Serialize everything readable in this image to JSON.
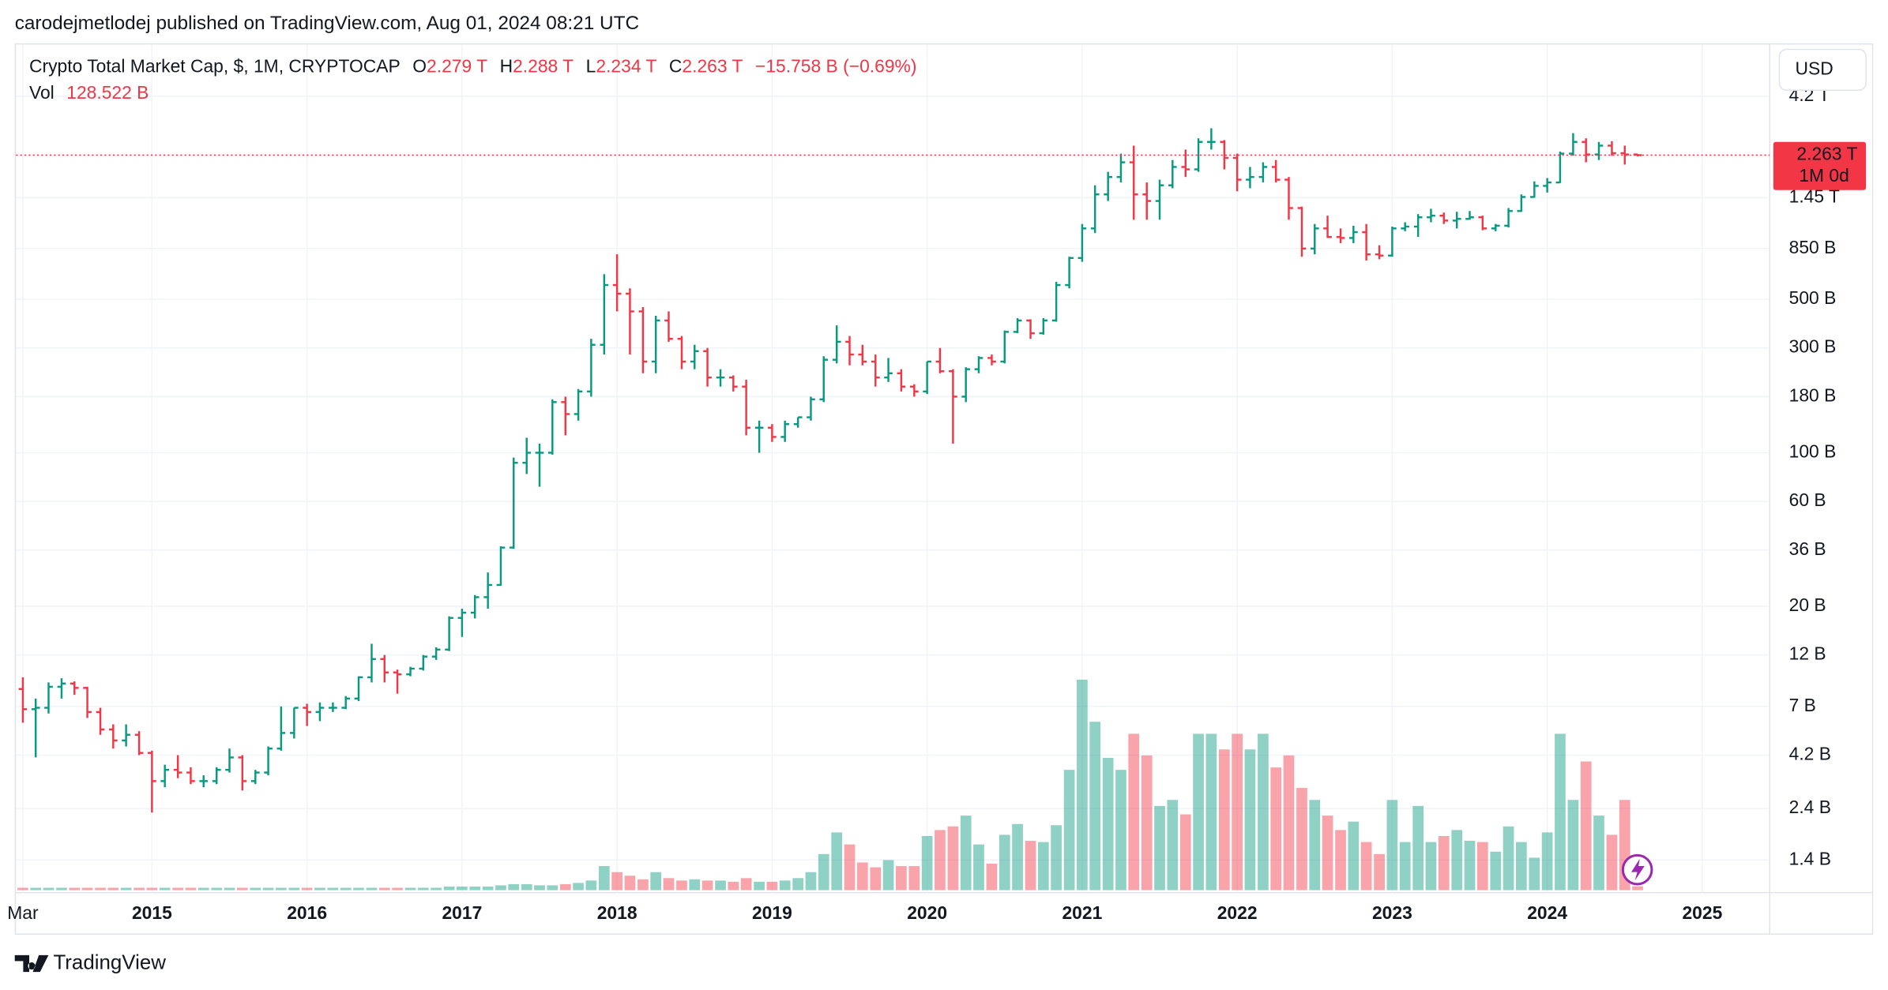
{
  "header": {
    "publisher": "carodejmetlodej published on TradingView.com, Aug 01, 2024 08:21 UTC"
  },
  "footer": {
    "logo_text": "TradingView"
  },
  "currency_button": "USD",
  "chart_data": {
    "type": "ohlc",
    "title": "Crypto Total Market Cap, $, 1M, CRYPTOCAP",
    "legend": {
      "open_key": "O",
      "open": "2.279 T",
      "high_key": "H",
      "high": "2.288 T",
      "low_key": "L",
      "low": "2.234 T",
      "close_key": "C",
      "close": "2.263 T",
      "change": "−15.758 B (−0.69%)",
      "volume_key": "Vol",
      "volume": "128.522 B"
    },
    "last_price_label": "2.263 T",
    "countdown": "1M 0d",
    "up_color": "#089981",
    "down_color": "#f23645",
    "log_scale": true,
    "grid": true,
    "xlim": [
      2014.115,
      2025.435
    ],
    "ylim": [
      1.02,
      6950
    ],
    "vol_ylim": [
      0,
      8000
    ],
    "xticks": [
      {
        "value": 2014.167,
        "label": "Mar"
      },
      2015,
      2016,
      2017,
      2018,
      2019,
      2020,
      2021,
      2022,
      2023,
      2024,
      2025
    ],
    "yticks": [
      {
        "value": 1.4,
        "label": "1.4 B"
      },
      {
        "value": 2.4,
        "label": "2.4 B"
      },
      {
        "value": 4.2,
        "label": "4.2 B"
      },
      {
        "value": 7,
        "label": "7 B"
      },
      {
        "value": 12,
        "label": "12 B"
      },
      {
        "value": 20,
        "label": "20 B"
      },
      {
        "value": 36,
        "label": "36 B"
      },
      {
        "value": 60,
        "label": "60 B"
      },
      {
        "value": 100,
        "label": "100 B"
      },
      {
        "value": 180,
        "label": "180 B"
      },
      {
        "value": 300,
        "label": "300 B"
      },
      {
        "value": 500,
        "label": "500 B"
      },
      {
        "value": 850,
        "label": "850 B"
      },
      {
        "value": 1450,
        "label": "1.45 T"
      },
      {
        "value": 4200,
        "label": "4.2 T"
      }
    ],
    "x": [
      2014.167,
      2014.25,
      2014.333,
      2014.417,
      2014.5,
      2014.583,
      2014.667,
      2014.75,
      2014.833,
      2014.917,
      2015,
      2015.083,
      2015.167,
      2015.25,
      2015.333,
      2015.417,
      2015.5,
      2015.583,
      2015.667,
      2015.75,
      2015.833,
      2015.917,
      2016,
      2016.083,
      2016.167,
      2016.25,
      2016.333,
      2016.417,
      2016.5,
      2016.583,
      2016.667,
      2016.75,
      2016.833,
      2016.917,
      2017,
      2017.083,
      2017.167,
      2017.25,
      2017.333,
      2017.417,
      2017.5,
      2017.583,
      2017.667,
      2017.75,
      2017.833,
      2017.917,
      2018,
      2018.083,
      2018.167,
      2018.25,
      2018.333,
      2018.417,
      2018.5,
      2018.583,
      2018.667,
      2018.75,
      2018.833,
      2018.917,
      2019,
      2019.083,
      2019.167,
      2019.25,
      2019.333,
      2019.417,
      2019.5,
      2019.583,
      2019.667,
      2019.75,
      2019.833,
      2019.917,
      2020,
      2020.083,
      2020.167,
      2020.25,
      2020.333,
      2020.417,
      2020.5,
      2020.583,
      2020.667,
      2020.75,
      2020.833,
      2020.917,
      2021,
      2021.083,
      2021.167,
      2021.25,
      2021.333,
      2021.417,
      2021.5,
      2021.583,
      2021.667,
      2021.75,
      2021.833,
      2021.917,
      2022,
      2022.083,
      2022.167,
      2022.25,
      2022.333,
      2022.417,
      2022.5,
      2022.583,
      2022.667,
      2022.75,
      2022.833,
      2022.917,
      2023,
      2023.083,
      2023.167,
      2023.25,
      2023.333,
      2023.417,
      2023.5,
      2023.583,
      2023.667,
      2023.75,
      2023.833,
      2023.917,
      2024,
      2024.083,
      2024.167,
      2024.25,
      2024.333,
      2024.417,
      2024.5,
      2024.583
    ],
    "open": [
      8.4,
      6.8,
      6.9,
      8.6,
      8.9,
      8.5,
      6.6,
      5.5,
      4.9,
      5.2,
      4.3,
      3.2,
      3.6,
      3.5,
      3.2,
      3.2,
      3.6,
      4.1,
      3.2,
      3.5,
      4.5,
      5.3,
      6.9,
      6.6,
      6.9,
      6.9,
      7.6,
      9.5,
      11.5,
      10.0,
      9.8,
      10.4,
      11.8,
      12.7,
      17.7,
      18.7,
      22.0,
      25.0,
      37.0,
      90,
      100,
      100,
      170,
      150,
      190,
      310,
      580,
      530,
      440,
      260,
      400,
      330,
      260,
      290,
      220,
      220,
      200,
      130,
      130,
      118,
      135,
      145,
      175,
      265,
      320,
      280,
      260,
      220,
      230,
      200,
      190,
      260,
      235,
      180,
      240,
      270,
      260,
      355,
      400,
      350,
      400,
      580,
      770,
      1050,
      1500,
      1800,
      2100,
      1500,
      1400,
      1650,
      2000,
      1950,
      2600,
      2600,
      2200,
      1750,
      1800,
      2000,
      1750,
      1300,
      850,
      1050,
      960,
      950,
      1010,
      800,
      790,
      1050,
      1070,
      1180,
      1200,
      1140,
      1160,
      1180,
      1050,
      1080,
      1260,
      1460,
      1640,
      1700,
      2300,
      2600,
      2280,
      2500,
      2310,
      2279
    ],
    "high": [
      9.5,
      7.6,
      9.0,
      9.4,
      9.1,
      8.6,
      6.9,
      5.8,
      5.8,
      5.4,
      4.4,
      3.8,
      4.2,
      3.7,
      3.4,
      3.7,
      4.5,
      4.2,
      3.6,
      4.6,
      7.0,
      6.9,
      7.2,
      7.3,
      7.3,
      7.8,
      9.6,
      13.5,
      12.0,
      10.3,
      10.6,
      12.0,
      13.0,
      18.0,
      19.5,
      22.5,
      28.5,
      37.5,
      95,
      117,
      110,
      175,
      180,
      195,
      330,
      650,
      800,
      560,
      460,
      420,
      440,
      340,
      310,
      300,
      240,
      225,
      215,
      140,
      135,
      140,
      145,
      180,
      275,
      380,
      340,
      310,
      280,
      270,
      240,
      205,
      260,
      300,
      240,
      245,
      275,
      280,
      360,
      410,
      405,
      410,
      600,
      780,
      1100,
      1650,
      1900,
      2300,
      2500,
      1700,
      1750,
      2150,
      2400,
      2700,
      3000,
      2650,
      2300,
      2000,
      2100,
      2150,
      1800,
      1320,
      1100,
      1200,
      1050,
      1080,
      1100,
      880,
      1070,
      1120,
      1220,
      1290,
      1240,
      1250,
      1260,
      1200,
      1100,
      1300,
      1500,
      1720,
      1780,
      2350,
      2850,
      2700,
      2600,
      2620,
      2500,
      2288
    ],
    "low": [
      5.9,
      4.1,
      6.5,
      7.6,
      7.9,
      6.2,
      5.2,
      4.5,
      4.6,
      4.2,
      2.3,
      3.0,
      3.3,
      3.1,
      3.0,
      3.1,
      3.5,
      2.9,
      3.1,
      3.4,
      4.4,
      5.0,
      5.7,
      6.0,
      6.6,
      6.8,
      7.4,
      9.0,
      9.0,
      8.0,
      9.6,
      10.2,
      11.4,
      12.5,
      14.5,
      17.6,
      19.5,
      24.8,
      36.5,
      80,
      70,
      98,
      120,
      140,
      180,
      280,
      440,
      280,
      230,
      230,
      320,
      240,
      240,
      200,
      200,
      190,
      120,
      100,
      112,
      112,
      130,
      140,
      170,
      255,
      250,
      250,
      200,
      210,
      190,
      180,
      185,
      230,
      110,
      170,
      230,
      250,
      255,
      350,
      330,
      345,
      395,
      560,
      740,
      1000,
      1400,
      1700,
      1150,
      1150,
      1150,
      1600,
      1800,
      1900,
      2400,
      1950,
      1550,
      1600,
      1700,
      1700,
      1150,
      780,
      800,
      950,
      900,
      900,
      750,
      760,
      780,
      1020,
      960,
      1120,
      1100,
      1050,
      1150,
      1030,
      1020,
      1060,
      1250,
      1450,
      1530,
      1690,
      2250,
      2100,
      2150,
      2250,
      2050,
      2234
    ],
    "close": [
      6.8,
      6.9,
      8.6,
      8.9,
      8.5,
      6.6,
      5.5,
      4.9,
      5.2,
      4.3,
      3.2,
      3.6,
      3.5,
      3.2,
      3.2,
      3.6,
      4.1,
      3.2,
      3.5,
      4.5,
      5.3,
      6.9,
      6.6,
      6.9,
      6.9,
      7.6,
      9.5,
      11.5,
      10.0,
      9.8,
      10.4,
      11.8,
      12.7,
      17.7,
      18.7,
      22.0,
      25.0,
      37.0,
      90,
      100,
      100,
      170,
      150,
      190,
      310,
      580,
      530,
      440,
      260,
      400,
      330,
      260,
      290,
      220,
      220,
      200,
      130,
      130,
      118,
      135,
      145,
      175,
      265,
      320,
      280,
      260,
      220,
      230,
      200,
      190,
      260,
      235,
      180,
      240,
      270,
      260,
      355,
      400,
      350,
      400,
      580,
      770,
      1050,
      1500,
      1800,
      2100,
      1500,
      1400,
      1650,
      2000,
      1950,
      2600,
      2600,
      2200,
      1750,
      1800,
      2000,
      1750,
      1300,
      850,
      1050,
      960,
      950,
      1010,
      800,
      790,
      1050,
      1070,
      1180,
      1200,
      1140,
      1160,
      1180,
      1050,
      1080,
      1260,
      1460,
      1640,
      1700,
      2300,
      2600,
      2280,
      2500,
      2310,
      2279,
      2263
    ],
    "volume": [
      80,
      80,
      80,
      80,
      80,
      80,
      80,
      80,
      80,
      80,
      80,
      80,
      80,
      80,
      80,
      80,
      80,
      80,
      80,
      80,
      80,
      80,
      80,
      80,
      80,
      80,
      80,
      80,
      80,
      80,
      80,
      80,
      80,
      120,
      120,
      120,
      120,
      160,
      200,
      200,
      160,
      160,
      200,
      240,
      320,
      800,
      600,
      480,
      360,
      600,
      400,
      320,
      360,
      320,
      320,
      280,
      400,
      280,
      280,
      320,
      400,
      600,
      1200,
      1920,
      1520,
      920,
      760,
      1000,
      800,
      800,
      1800,
      2000,
      2120,
      2480,
      1520,
      880,
      1840,
      2200,
      1640,
      1600,
      2160,
      4000,
      7000,
      5600,
      4400,
      4000,
      5200,
      4480,
      2800,
      3000,
      2520,
      5200,
      5200,
      4680,
      5200,
      4680,
      5200,
      4080,
      4480,
      3400,
      3000,
      2480,
      2000,
      2280,
      1600,
      1200,
      3000,
      1600,
      2800,
      1600,
      1800,
      2000,
      1640,
      1600,
      1280,
      2120,
      1600,
      1080,
      1920,
      5200,
      3000,
      4280,
      2480,
      1840,
      3000,
      128.522
    ]
  }
}
